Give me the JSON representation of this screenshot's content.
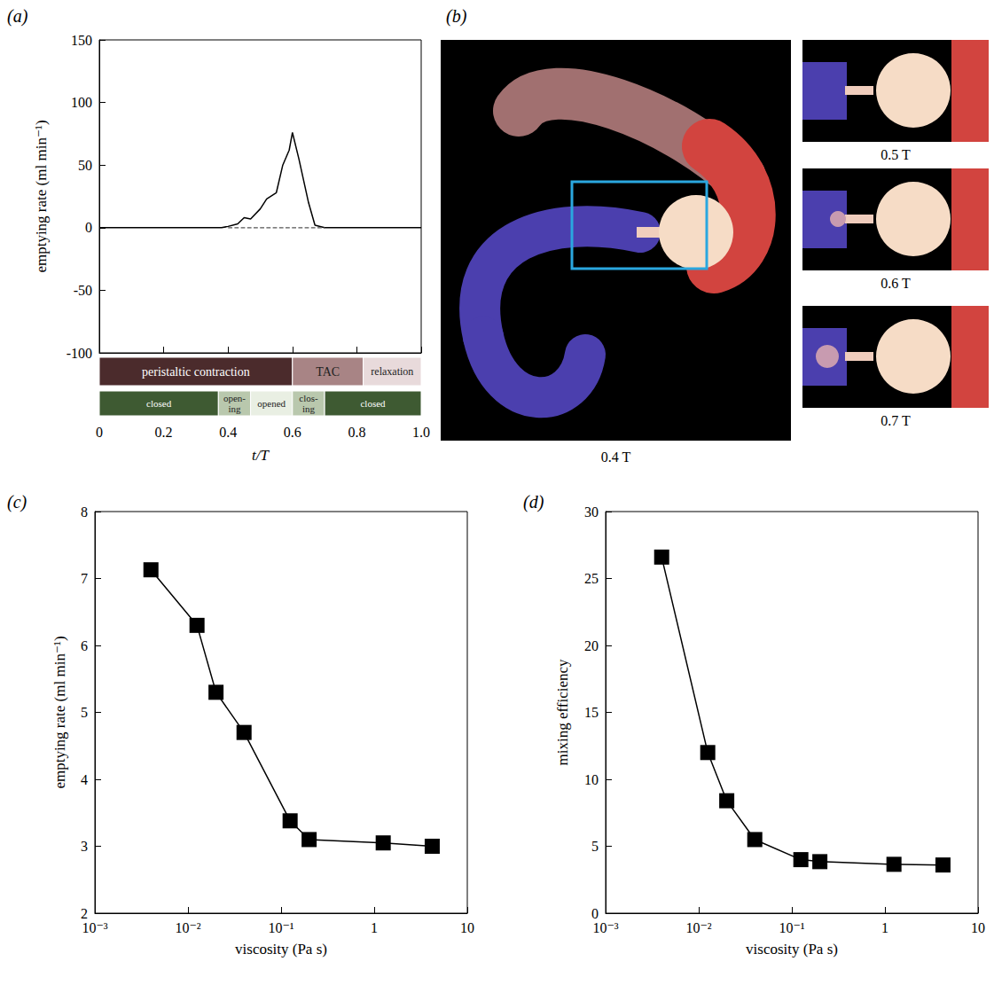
{
  "chart_data": [
    {
      "title": "(a)",
      "type": "line",
      "xlabel": "t/T",
      "ylabel": "emptying rate (ml min⁻¹)",
      "x": [
        0,
        0.1,
        0.2,
        0.3,
        0.38,
        0.4,
        0.43,
        0.45,
        0.47,
        0.5,
        0.52,
        0.55,
        0.57,
        0.59,
        0.6,
        0.62,
        0.65,
        0.67,
        0.7,
        0.8,
        0.9,
        1.0
      ],
      "values": [
        0,
        0,
        0,
        0,
        0,
        1,
        3,
        8,
        7,
        15,
        23,
        28,
        50,
        62,
        76,
        55,
        20,
        2,
        0,
        0,
        0,
        0
      ],
      "color": "#000000",
      "marker": "none",
      "line_style": "solid",
      "zero_line": {
        "x": [
          0.4,
          0.7
        ],
        "y": 0,
        "line_style": "dashed"
      },
      "xlim": [
        0,
        1
      ],
      "xticks": [
        0,
        0.2,
        0.4,
        0.6,
        0.8,
        {
          "value": 1,
          "label": "1.0"
        }
      ],
      "ylim": [
        -100,
        150
      ],
      "yticks": [
        -100,
        -50,
        0,
        50,
        100,
        150
      ],
      "grid": false,
      "phases": [
        [
          {
            "label": "peristaltic contraction",
            "start": 0,
            "end": 0.6,
            "color": "#4b2b2c"
          },
          {
            "label": "TAC",
            "start": 0.6,
            "end": 0.82,
            "color": "#a88485"
          },
          {
            "label": "relaxation",
            "start": 0.82,
            "end": 1.0,
            "color": "#e8dadb"
          }
        ],
        [
          {
            "label": "closed",
            "start": 0,
            "end": 0.37,
            "color": "#3e5a32"
          },
          {
            "label": "open-ing",
            "start": 0.37,
            "end": 0.47,
            "color": "#b9c8ad"
          },
          {
            "label": "opened",
            "start": 0.47,
            "end": 0.6,
            "color": "#e9efe3"
          },
          {
            "label": "clos-ing",
            "start": 0.6,
            "end": 0.7,
            "color": "#b9c8ad"
          },
          {
            "label": "closed",
            "start": 0.7,
            "end": 1.0,
            "color": "#3e5a32"
          }
        ]
      ]
    },
    {
      "title": "(b)",
      "type": "image",
      "frames": [
        {
          "label": "0.4 T"
        },
        {
          "label": "0.5 T"
        },
        {
          "label": "0.6 T"
        },
        {
          "label": "0.7 T"
        }
      ]
    },
    {
      "title": "(c)",
      "type": "line",
      "xlabel": "viscosity (Pa s)",
      "ylabel": "emptying rate (ml min⁻¹)",
      "x": [
        0.004,
        0.0125,
        0.02,
        0.04,
        0.125,
        0.2,
        1.25,
        4.2
      ],
      "values": [
        7.13,
        6.3,
        5.3,
        4.7,
        3.38,
        3.1,
        3.05,
        3.0
      ],
      "color": "#000000",
      "marker": "square",
      "line_style": "solid",
      "log": "x",
      "xlim": [
        0.001,
        10
      ],
      "xticks": [
        {
          "value": 0.001,
          "label": "10⁻³"
        },
        {
          "value": 0.01,
          "label": "10⁻²"
        },
        {
          "value": 0.1,
          "label": "10⁻¹"
        },
        1,
        10
      ],
      "ylim": [
        2,
        8
      ],
      "yticks": [
        2,
        3,
        4,
        5,
        6,
        7,
        8
      ],
      "grid": false
    },
    {
      "title": "(d)",
      "type": "line",
      "xlabel": "viscosity (Pa s)",
      "ylabel": "mixing efficiency",
      "x": [
        0.004,
        0.0125,
        0.02,
        0.04,
        0.125,
        0.2,
        1.25,
        4.2
      ],
      "values": [
        26.6,
        12,
        8.4,
        5.5,
        4.0,
        3.85,
        3.65,
        3.6
      ],
      "color": "#000000",
      "marker": "square",
      "line_style": "solid",
      "log": "x",
      "xlim": [
        0.001,
        10
      ],
      "xticks": [
        {
          "value": 0.001,
          "label": "10⁻³"
        },
        {
          "value": 0.01,
          "label": "10⁻²"
        },
        {
          "value": 0.1,
          "label": "10⁻¹"
        },
        1,
        10
      ],
      "ylim": [
        0,
        30
      ],
      "yticks": [
        0,
        5,
        10,
        15,
        20,
        25,
        30
      ],
      "grid": false
    }
  ]
}
